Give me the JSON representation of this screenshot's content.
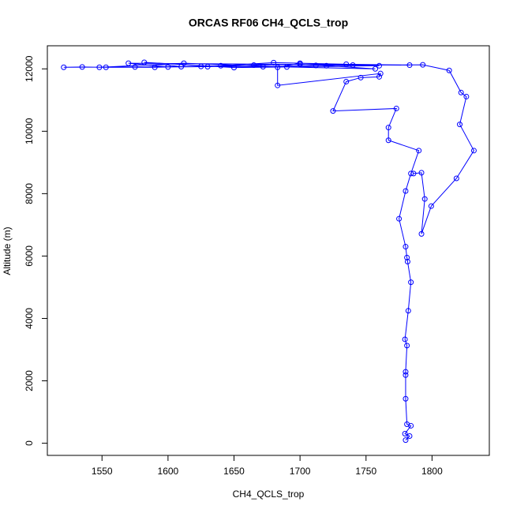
{
  "chart_data": {
    "type": "line",
    "title": "ORCAS RF06 CH4_QCLS_trop",
    "xlabel": "CH4_QCLS_trop",
    "ylabel": "Altitude (m)",
    "x": [
      1780,
      1783,
      1779.5,
      1784,
      1781,
      1780,
      1780,
      1780,
      1781,
      1779.5,
      1782,
      1784,
      1781.5,
      1781,
      1780,
      1775,
      1780,
      1784,
      1790,
      1767,
      1767,
      1773,
      1725,
      1735,
      1746,
      1760,
      1761,
      1683,
      1683,
      1700,
      1760,
      1650,
      1582,
      1610,
      1521,
      1535,
      1553,
      1590,
      1640,
      1680,
      1735,
      1783,
      1570,
      1600,
      1630,
      1665,
      1700,
      1720,
      1757,
      1690,
      1612,
      1548,
      1575,
      1625,
      1672,
      1712,
      1740,
      1793,
      1813,
      1822,
      1826,
      1821,
      1831.7,
      1818.5,
      1799.4,
      1792,
      1794.5,
      1792,
      1786
    ],
    "series": [
      {
        "name": "CH4_QCLS_trop",
        "color": "#0000ff",
        "values": [
          100,
          230,
          305,
          560,
          610,
          1425,
          2185,
          2290,
          3130,
          3330,
          4245,
          5160,
          5820,
          5950,
          6300,
          7195,
          8085,
          8645,
          9380,
          9710,
          10120,
          10730,
          10650,
          11590,
          11720,
          11745,
          11850,
          11470,
          12050,
          12180,
          12100,
          12040,
          12210,
          12070,
          12050,
          12060,
          12050,
          12050,
          12100,
          12200,
          12150,
          12120,
          12180,
          12060,
          12070,
          12120,
          12150,
          12100,
          12000,
          12060,
          12180,
          12050,
          12060,
          12080,
          12070,
          12110,
          12120,
          12130,
          11950,
          11240,
          11110,
          10220,
          9380,
          8490,
          7600,
          6710,
          7830,
          8670,
          8645
        ]
      }
    ],
    "xlim": [
      1508.6,
      1843.4
    ],
    "ylim": [
      -390,
      12740
    ],
    "xticks": [
      1550,
      1600,
      1650,
      1700,
      1750,
      1800
    ],
    "yticks": [
      0,
      2000,
      4000,
      6000,
      8000,
      10000,
      12000
    ]
  }
}
